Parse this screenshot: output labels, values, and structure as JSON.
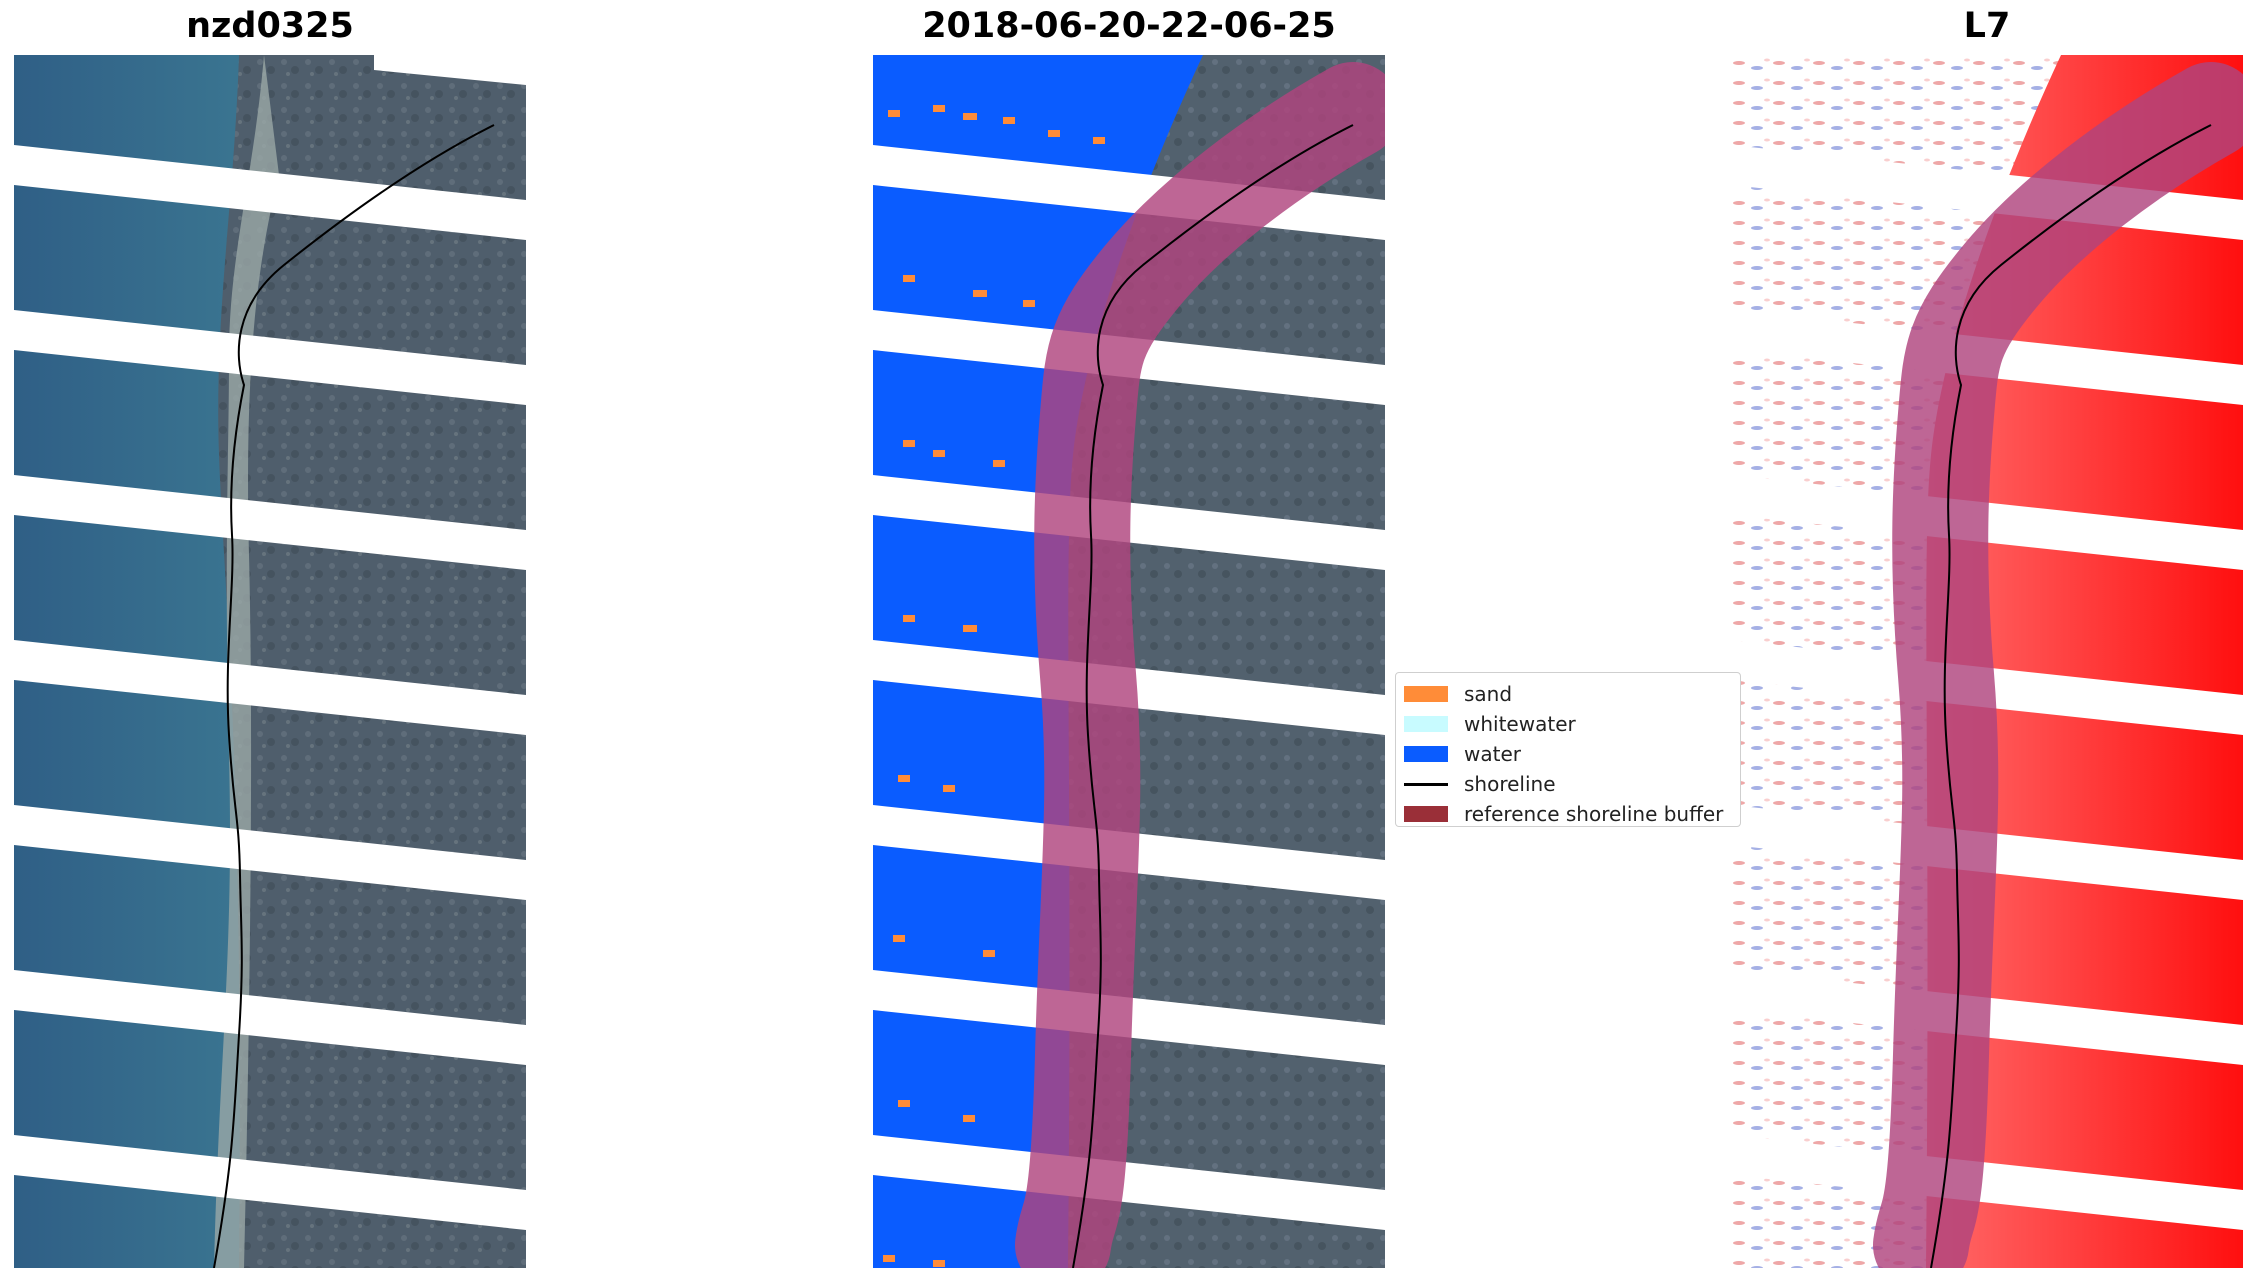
{
  "panels": [
    {
      "title": "nzd0325"
    },
    {
      "title": "2018-06-20-22-06-25"
    },
    {
      "title": "L7"
    }
  ],
  "legend": {
    "items": [
      {
        "label": "sand",
        "color": "#ff8c38",
        "kind": "patch"
      },
      {
        "label": "whitewater",
        "color": "#c8fbff",
        "kind": "patch"
      },
      {
        "label": "water",
        "color": "#0a5cff",
        "kind": "patch"
      },
      {
        "label": "shoreline",
        "color": "#000000",
        "kind": "line"
      },
      {
        "label": "reference shoreline buffer",
        "color": "#9a2f38",
        "kind": "patch"
      }
    ]
  },
  "colors": {
    "sea": "#3d6e8c",
    "land": "#51606e",
    "water_class": "#0a5cff",
    "buffer": "#b0447e",
    "index_positive": "#ff1a1a",
    "shoreline": "#000000"
  }
}
